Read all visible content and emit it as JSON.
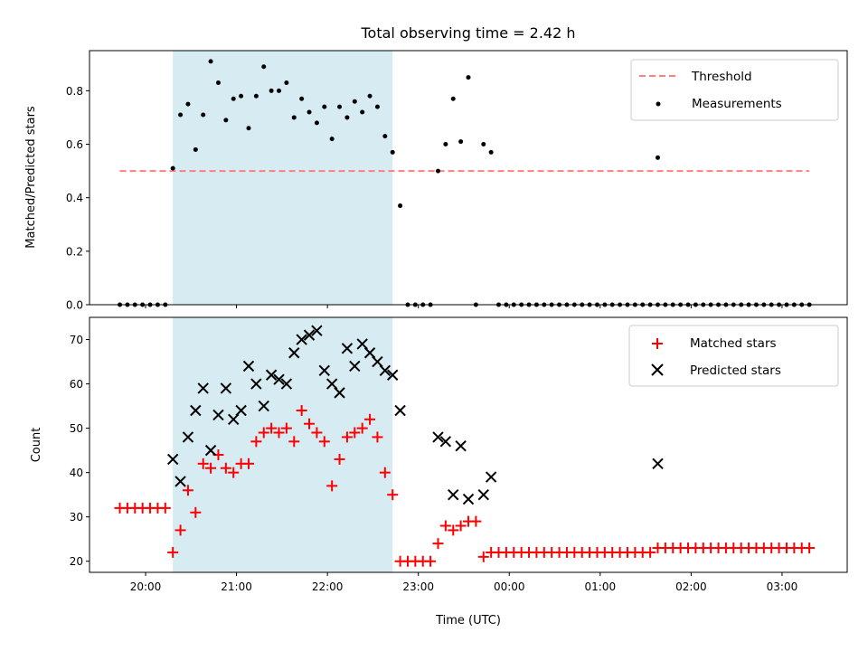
{
  "chart_data": [
    {
      "type": "scatter",
      "title": "Total observing time = 2.42 h",
      "xlabel": "",
      "ylabel": "Matched/Predicted stars",
      "ylim": [
        0,
        0.95
      ],
      "yticks": [
        "0.0",
        "0.2",
        "0.4",
        "0.6",
        "0.8"
      ],
      "legend_position": "top-right",
      "highlight_span": [
        "20:18",
        "22:43"
      ],
      "threshold": {
        "name": "Threshold",
        "value": 0.5,
        "x_range": [
          "19:43",
          "03:18"
        ],
        "color": "#ff7f7f",
        "style": "dashed"
      },
      "series": [
        {
          "name": "Measurements",
          "marker": "dot",
          "color": "#000000",
          "points": [
            [
              "19:43",
              0
            ],
            [
              "19:48",
              0
            ],
            [
              "19:53",
              0
            ],
            [
              "19:58",
              0
            ],
            [
              "20:03",
              0
            ],
            [
              "20:08",
              0
            ],
            [
              "20:13",
              0
            ],
            [
              "20:18",
              0.51
            ],
            [
              "20:23",
              0.71
            ],
            [
              "20:28",
              0.75
            ],
            [
              "20:33",
              0.58
            ],
            [
              "20:38",
              0.71
            ],
            [
              "20:43",
              0.91
            ],
            [
              "20:48",
              0.83
            ],
            [
              "20:53",
              0.69
            ],
            [
              "20:58",
              0.77
            ],
            [
              "21:03",
              0.78
            ],
            [
              "21:08",
              0.66
            ],
            [
              "21:13",
              0.78
            ],
            [
              "21:18",
              0.89
            ],
            [
              "21:23",
              0.8
            ],
            [
              "21:28",
              0.8
            ],
            [
              "21:33",
              0.83
            ],
            [
              "21:38",
              0.7
            ],
            [
              "21:43",
              0.77
            ],
            [
              "21:48",
              0.72
            ],
            [
              "21:53",
              0.68
            ],
            [
              "21:58",
              0.74
            ],
            [
              "22:03",
              0.62
            ],
            [
              "22:08",
              0.74
            ],
            [
              "22:13",
              0.7
            ],
            [
              "22:18",
              0.76
            ],
            [
              "22:23",
              0.72
            ],
            [
              "22:28",
              0.78
            ],
            [
              "22:33",
              0.74
            ],
            [
              "22:38",
              0.63
            ],
            [
              "22:43",
              0.57
            ],
            [
              "22:48",
              0.37
            ],
            [
              "22:53",
              0
            ],
            [
              "22:58",
              0
            ],
            [
              "23:03",
              0
            ],
            [
              "23:08",
              0
            ],
            [
              "23:13",
              0.5
            ],
            [
              "23:18",
              0.6
            ],
            [
              "23:23",
              0.77
            ],
            [
              "23:28",
              0.61
            ],
            [
              "23:33",
              0.85
            ],
            [
              "23:38",
              0
            ],
            [
              "23:43",
              0.6
            ],
            [
              "23:48",
              0.57
            ],
            [
              "23:53",
              0
            ],
            [
              "23:58",
              0
            ],
            [
              "00:03",
              0
            ],
            [
              "00:08",
              0
            ],
            [
              "00:13",
              0
            ],
            [
              "00:18",
              0
            ],
            [
              "00:23",
              0
            ],
            [
              "00:28",
              0
            ],
            [
              "00:33",
              0
            ],
            [
              "00:38",
              0
            ],
            [
              "00:43",
              0
            ],
            [
              "00:48",
              0
            ],
            [
              "00:53",
              0
            ],
            [
              "00:58",
              0
            ],
            [
              "01:03",
              0
            ],
            [
              "01:08",
              0
            ],
            [
              "01:13",
              0
            ],
            [
              "01:18",
              0
            ],
            [
              "01:23",
              0
            ],
            [
              "01:28",
              0
            ],
            [
              "01:33",
              0
            ],
            [
              "01:38",
              0
            ],
            [
              "01:43",
              0
            ],
            [
              "01:48",
              0
            ],
            [
              "01:53",
              0
            ],
            [
              "01:58",
              0
            ],
            [
              "02:03",
              0
            ],
            [
              "02:08",
              0
            ],
            [
              "02:13",
              0
            ],
            [
              "02:18",
              0
            ],
            [
              "02:23",
              0
            ],
            [
              "02:28",
              0
            ],
            [
              "02:33",
              0
            ],
            [
              "02:38",
              0
            ],
            [
              "02:43",
              0
            ],
            [
              "02:48",
              0
            ],
            [
              "02:53",
              0
            ],
            [
              "02:58",
              0
            ],
            [
              "03:03",
              0
            ],
            [
              "03:08",
              0
            ],
            [
              "03:13",
              0
            ],
            [
              "03:18",
              0
            ],
            [
              "01:38",
              0.55
            ]
          ]
        }
      ]
    },
    {
      "type": "scatter",
      "title": "",
      "xlabel": "Time (UTC)",
      "ylabel": "Count",
      "ylim": [
        17.5,
        75
      ],
      "yticks": [
        "20",
        "30",
        "40",
        "50",
        "60",
        "70"
      ],
      "xlim": [
        "19:23",
        "03:43"
      ],
      "xticks": [
        "20:00",
        "21:00",
        "22:00",
        "23:00",
        "00:00",
        "01:00",
        "02:00",
        "03:00"
      ],
      "legend_position": "top-right",
      "highlight_span": [
        "20:18",
        "22:43"
      ],
      "series": [
        {
          "name": "Matched stars",
          "marker": "plus",
          "color": "#ff0000",
          "points": [
            [
              "19:43",
              32
            ],
            [
              "19:48",
              32
            ],
            [
              "19:53",
              32
            ],
            [
              "19:58",
              32
            ],
            [
              "20:03",
              32
            ],
            [
              "20:08",
              32
            ],
            [
              "20:13",
              32
            ],
            [
              "20:18",
              22
            ],
            [
              "20:23",
              27
            ],
            [
              "20:28",
              36
            ],
            [
              "20:33",
              31
            ],
            [
              "20:38",
              42
            ],
            [
              "20:43",
              41
            ],
            [
              "20:48",
              44
            ],
            [
              "20:53",
              41
            ],
            [
              "20:58",
              40
            ],
            [
              "21:03",
              42
            ],
            [
              "21:08",
              42
            ],
            [
              "21:13",
              47
            ],
            [
              "21:18",
              49
            ],
            [
              "21:23",
              50
            ],
            [
              "21:28",
              49
            ],
            [
              "21:33",
              50
            ],
            [
              "21:38",
              47
            ],
            [
              "21:43",
              54
            ],
            [
              "21:48",
              51
            ],
            [
              "21:53",
              49
            ],
            [
              "21:58",
              47
            ],
            [
              "22:03",
              37
            ],
            [
              "22:08",
              43
            ],
            [
              "22:13",
              48
            ],
            [
              "22:18",
              49
            ],
            [
              "22:23",
              50
            ],
            [
              "22:28",
              52
            ],
            [
              "22:33",
              48
            ],
            [
              "22:38",
              40
            ],
            [
              "22:43",
              35
            ],
            [
              "22:48",
              20
            ],
            [
              "22:53",
              20
            ],
            [
              "22:58",
              20
            ],
            [
              "23:03",
              20
            ],
            [
              "23:08",
              20
            ],
            [
              "23:13",
              24
            ],
            [
              "23:18",
              28
            ],
            [
              "23:23",
              27
            ],
            [
              "23:28",
              28
            ],
            [
              "23:33",
              29
            ],
            [
              "23:38",
              29
            ],
            [
              "23:43",
              21
            ],
            [
              "23:48",
              22
            ],
            [
              "23:53",
              22
            ],
            [
              "23:58",
              22
            ],
            [
              "00:03",
              22
            ],
            [
              "00:08",
              22
            ],
            [
              "00:13",
              22
            ],
            [
              "00:18",
              22
            ],
            [
              "00:23",
              22
            ],
            [
              "00:28",
              22
            ],
            [
              "00:33",
              22
            ],
            [
              "00:38",
              22
            ],
            [
              "00:43",
              22
            ],
            [
              "00:48",
              22
            ],
            [
              "00:53",
              22
            ],
            [
              "00:58",
              22
            ],
            [
              "01:03",
              22
            ],
            [
              "01:08",
              22
            ],
            [
              "01:13",
              22
            ],
            [
              "01:18",
              22
            ],
            [
              "01:23",
              22
            ],
            [
              "01:28",
              22
            ],
            [
              "01:33",
              22
            ],
            [
              "01:38",
              23
            ],
            [
              "01:43",
              23
            ],
            [
              "01:48",
              23
            ],
            [
              "01:53",
              23
            ],
            [
              "01:58",
              23
            ],
            [
              "02:03",
              23
            ],
            [
              "02:08",
              23
            ],
            [
              "02:13",
              23
            ],
            [
              "02:18",
              23
            ],
            [
              "02:23",
              23
            ],
            [
              "02:28",
              23
            ],
            [
              "02:33",
              23
            ],
            [
              "02:38",
              23
            ],
            [
              "02:43",
              23
            ],
            [
              "02:48",
              23
            ],
            [
              "02:53",
              23
            ],
            [
              "02:58",
              23
            ],
            [
              "03:03",
              23
            ],
            [
              "03:08",
              23
            ],
            [
              "03:13",
              23
            ],
            [
              "03:18",
              23
            ]
          ]
        },
        {
          "name": "Predicted stars",
          "marker": "x",
          "color": "#000000",
          "points": [
            [
              "20:18",
              43
            ],
            [
              "20:23",
              38
            ],
            [
              "20:28",
              48
            ],
            [
              "20:33",
              54
            ],
            [
              "20:38",
              59
            ],
            [
              "20:43",
              45
            ],
            [
              "20:48",
              53
            ],
            [
              "20:53",
              59
            ],
            [
              "20:58",
              52
            ],
            [
              "21:03",
              54
            ],
            [
              "21:08",
              64
            ],
            [
              "21:13",
              60
            ],
            [
              "21:18",
              55
            ],
            [
              "21:23",
              62
            ],
            [
              "21:28",
              61
            ],
            [
              "21:33",
              60
            ],
            [
              "21:38",
              67
            ],
            [
              "21:43",
              70
            ],
            [
              "21:48",
              71
            ],
            [
              "21:53",
              72
            ],
            [
              "21:58",
              63
            ],
            [
              "22:03",
              60
            ],
            [
              "22:08",
              58
            ],
            [
              "22:13",
              68
            ],
            [
              "22:18",
              64
            ],
            [
              "22:23",
              69
            ],
            [
              "22:28",
              67
            ],
            [
              "22:33",
              65
            ],
            [
              "22:38",
              63
            ],
            [
              "22:43",
              62
            ],
            [
              "22:48",
              54
            ],
            [
              "23:13",
              48
            ],
            [
              "23:18",
              47
            ],
            [
              "23:23",
              35
            ],
            [
              "23:28",
              46
            ],
            [
              "23:33",
              34
            ],
            [
              "23:43",
              35
            ],
            [
              "23:48",
              39
            ],
            [
              "01:38",
              42
            ]
          ]
        }
      ]
    }
  ]
}
